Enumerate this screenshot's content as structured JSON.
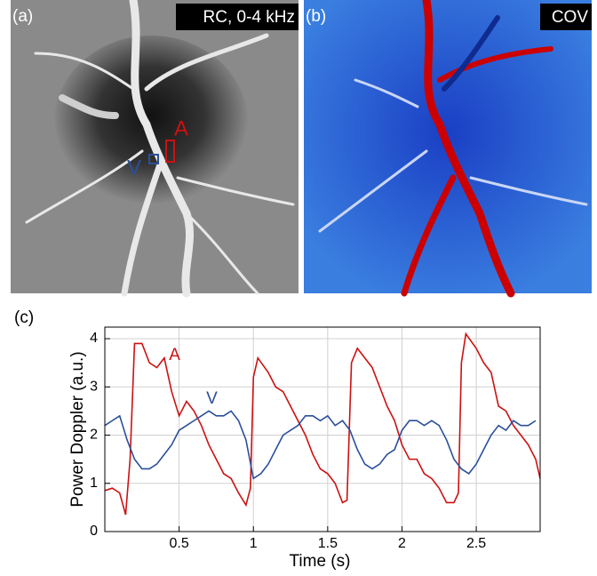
{
  "panels": {
    "a": {
      "label": "(a)",
      "title": "RC, 0-4 kHz",
      "markers": [
        "A",
        "V"
      ]
    },
    "b": {
      "label": "(b)",
      "title": "COV"
    },
    "c": {
      "label": "(c)"
    }
  },
  "chart_data": {
    "type": "line",
    "xlabel": "Time (s)",
    "ylabel": "Power Doppler (a.u.)",
    "xlim": [
      0,
      2.93
    ],
    "ylim": [
      0,
      4.24
    ],
    "xticks": [
      0.5,
      1,
      1.5,
      2,
      2.5
    ],
    "yticks": [
      0,
      1,
      2,
      3,
      4
    ],
    "grid": true,
    "series": [
      {
        "name": "A",
        "color": "#cc1111",
        "x": [
          0,
          0.05,
          0.1,
          0.14,
          0.17,
          0.2,
          0.25,
          0.3,
          0.35,
          0.4,
          0.45,
          0.5,
          0.55,
          0.6,
          0.65,
          0.7,
          0.75,
          0.8,
          0.85,
          0.9,
          0.95,
          0.98,
          1.0,
          1.03,
          1.1,
          1.15,
          1.2,
          1.25,
          1.3,
          1.35,
          1.4,
          1.45,
          1.5,
          1.55,
          1.6,
          1.63,
          1.66,
          1.7,
          1.75,
          1.8,
          1.85,
          1.9,
          1.95,
          2.0,
          2.05,
          2.1,
          2.15,
          2.2,
          2.25,
          2.3,
          2.35,
          2.38,
          2.4,
          2.43,
          2.5,
          2.55,
          2.6,
          2.65,
          2.7,
          2.75,
          2.8,
          2.85,
          2.9,
          2.93
        ],
        "values": [
          0.85,
          0.9,
          0.8,
          0.35,
          1.5,
          3.9,
          3.9,
          3.5,
          3.4,
          3.6,
          2.9,
          2.4,
          2.7,
          2.5,
          2.2,
          1.8,
          1.5,
          1.2,
          1.1,
          0.8,
          0.55,
          0.9,
          3.2,
          3.6,
          3.3,
          3.0,
          2.9,
          2.6,
          2.3,
          2.0,
          1.6,
          1.3,
          1.2,
          1.0,
          0.6,
          0.65,
          3.5,
          3.8,
          3.6,
          3.4,
          3.0,
          2.6,
          2.3,
          1.8,
          1.5,
          1.5,
          1.2,
          1.1,
          0.9,
          0.6,
          0.6,
          0.8,
          3.5,
          4.1,
          3.8,
          3.5,
          3.3,
          2.6,
          2.5,
          2.2,
          2.0,
          1.8,
          1.5,
          1.1
        ]
      },
      {
        "name": "V",
        "color": "#2a4f9a",
        "x": [
          0,
          0.05,
          0.1,
          0.15,
          0.2,
          0.25,
          0.3,
          0.35,
          0.4,
          0.45,
          0.5,
          0.55,
          0.6,
          0.65,
          0.7,
          0.75,
          0.8,
          0.85,
          0.9,
          0.95,
          1.0,
          1.05,
          1.1,
          1.15,
          1.2,
          1.25,
          1.3,
          1.35,
          1.4,
          1.45,
          1.5,
          1.55,
          1.6,
          1.65,
          1.7,
          1.75,
          1.8,
          1.85,
          1.9,
          1.95,
          2.0,
          2.05,
          2.1,
          2.15,
          2.2,
          2.25,
          2.3,
          2.35,
          2.4,
          2.45,
          2.5,
          2.55,
          2.6,
          2.65,
          2.7,
          2.75,
          2.8,
          2.85,
          2.9
        ],
        "values": [
          2.2,
          2.3,
          2.4,
          1.9,
          1.5,
          1.3,
          1.3,
          1.4,
          1.6,
          1.8,
          2.1,
          2.2,
          2.3,
          2.4,
          2.5,
          2.4,
          2.4,
          2.5,
          2.3,
          1.9,
          1.1,
          1.2,
          1.4,
          1.7,
          2.0,
          2.1,
          2.2,
          2.4,
          2.4,
          2.3,
          2.4,
          2.2,
          2.3,
          2.1,
          1.7,
          1.4,
          1.3,
          1.4,
          1.6,
          1.7,
          2.1,
          2.3,
          2.3,
          2.2,
          2.3,
          2.2,
          1.9,
          1.5,
          1.3,
          1.2,
          1.4,
          1.7,
          2.0,
          2.2,
          2.1,
          2.3,
          2.2,
          2.2,
          2.3
        ]
      }
    ],
    "annotations": [
      {
        "text": "A",
        "x": 0.47,
        "y": 3.65,
        "color": "#cc1111"
      },
      {
        "text": "V",
        "x": 0.72,
        "y": 2.75,
        "color": "#2a4f9a"
      }
    ]
  }
}
